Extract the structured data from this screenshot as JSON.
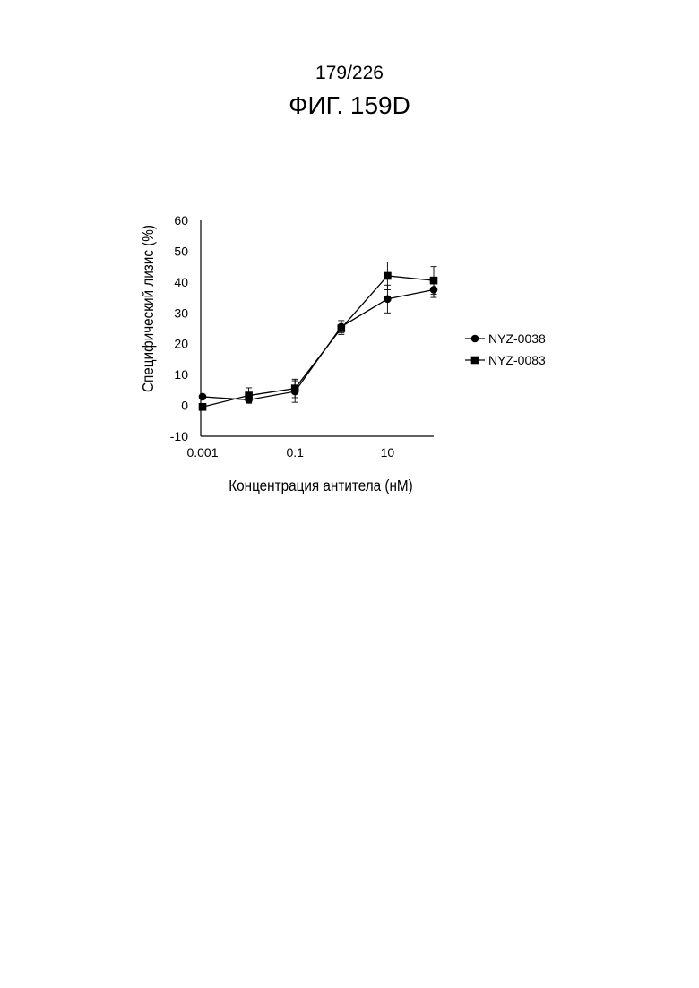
{
  "header": {
    "page_number": "179/226",
    "figure_label": "ФИГ. 159D"
  },
  "chart_data": {
    "type": "line",
    "title": "",
    "xlabel": "Концентрация антитела (нМ)",
    "ylabel": "Специфический лизис (%)",
    "x_scale": "log",
    "xlim": [
      0.001,
      100
    ],
    "ylim": [
      -10,
      60
    ],
    "x_ticks": [
      {
        "value": 0.001,
        "label": "0.001"
      },
      {
        "value": 0.1,
        "label": "0.1"
      },
      {
        "value": 10,
        "label": "10"
      }
    ],
    "y_ticks": [
      {
        "value": -10,
        "label": "-10"
      },
      {
        "value": 0,
        "label": "0"
      },
      {
        "value": 10,
        "label": "10"
      },
      {
        "value": 20,
        "label": "20"
      },
      {
        "value": 30,
        "label": "30"
      },
      {
        "value": 40,
        "label": "40"
      },
      {
        "value": 50,
        "label": "50"
      },
      {
        "value": 60,
        "label": "60"
      }
    ],
    "grid": false,
    "legend_position": "right",
    "series": [
      {
        "name": "NYZ-0038",
        "marker": "circle",
        "color": "#000000",
        "x": [
          0.001,
          0.01,
          0.1,
          1,
          10,
          100
        ],
        "y": [
          2.8,
          1.8,
          4.5,
          25.5,
          34.5,
          37.5
        ],
        "error": [
          0.3,
          1.0,
          3.5,
          2.0,
          4.5,
          2.5
        ]
      },
      {
        "name": "NYZ-0083",
        "marker": "square",
        "color": "#000000",
        "x": [
          0.001,
          0.01,
          0.1,
          1,
          10,
          100
        ],
        "y": [
          -0.5,
          3.2,
          5.5,
          25.0,
          42.0,
          40.5
        ],
        "error": [
          0.3,
          2.5,
          3.0,
          2.0,
          4.5,
          4.5
        ]
      }
    ]
  }
}
